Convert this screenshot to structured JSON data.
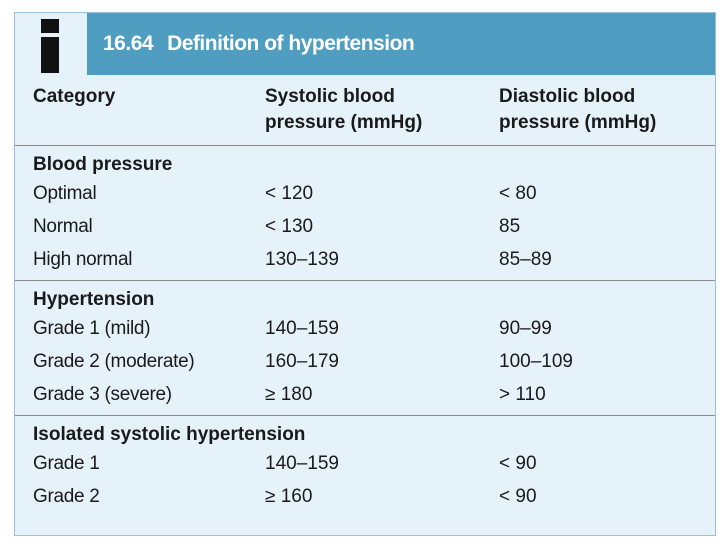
{
  "box": {
    "number": "16.64",
    "title": "Definition of hypertension",
    "icon": "info-icon"
  },
  "columns": [
    "Category",
    "Systolic blood pressure (mmHg)",
    "Diastolic blood pressure (mmHg)"
  ],
  "column_lines": [
    [
      "Category"
    ],
    [
      "Systolic blood",
      "pressure (mmHg)"
    ],
    [
      "Diastolic blood",
      "pressure (mmHg)"
    ]
  ],
  "sections": [
    {
      "title": "Blood pressure",
      "rows": [
        {
          "category": "Optimal",
          "systolic": "< 120",
          "diastolic": "< 80"
        },
        {
          "category": "Normal",
          "systolic": "< 130",
          "diastolic": "85"
        },
        {
          "category": "High normal",
          "systolic": "130–139",
          "diastolic": "85–89"
        }
      ]
    },
    {
      "title": "Hypertension",
      "rows": [
        {
          "category": "Grade 1 (mild)",
          "systolic": "140–159",
          "diastolic": "90–99"
        },
        {
          "category": "Grade 2 (moderate)",
          "systolic": "160–179",
          "diastolic": "100–109"
        },
        {
          "category": "Grade 3 (severe)",
          "systolic": "≥ 180",
          "diastolic": "> 110"
        }
      ]
    },
    {
      "title": "Isolated systolic hypertension",
      "rows": [
        {
          "category": "Grade 1",
          "systolic": "140–159",
          "diastolic": "< 90"
        },
        {
          "category": "Grade 2",
          "systolic": "≥ 160",
          "diastolic": "< 90"
        }
      ]
    }
  ],
  "colors": {
    "title_bar": "#4f9dc0",
    "panel_background": "#e6f2fa"
  }
}
